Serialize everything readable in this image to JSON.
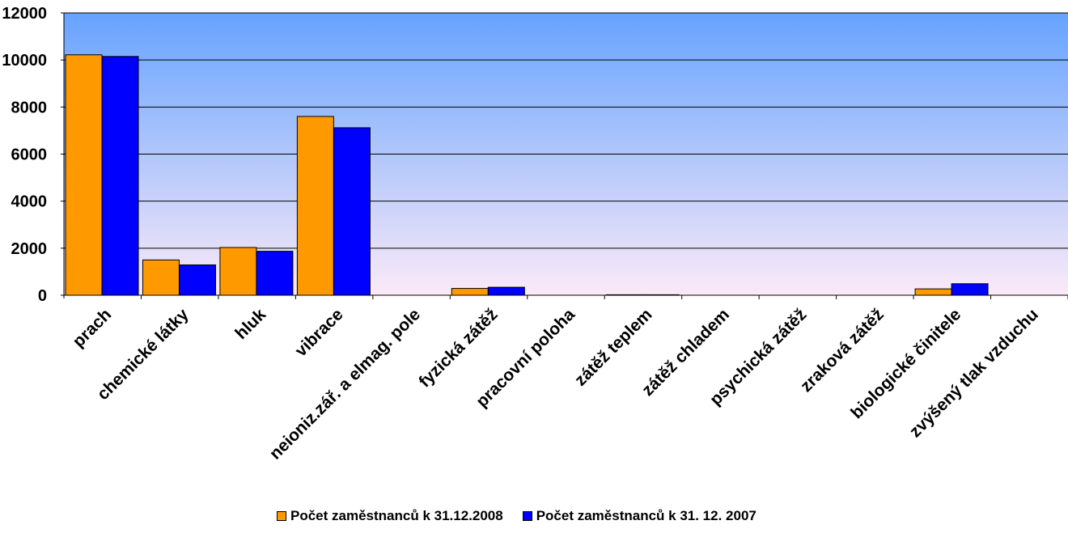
{
  "chart_data": {
    "type": "bar",
    "categories": [
      "prach",
      "chemické látky",
      "hluk",
      "vibrace",
      "neioniz.zář. a elmag. pole",
      "fyzická zátěž",
      "pracovní poloha",
      "zátěž teplem",
      "zátěž chladem",
      "psychická zátěž",
      "zraková zátěž",
      "biologické činitele",
      "zvýšený tlak vzduchu"
    ],
    "series": [
      {
        "name": "Počet zaměstnanců k 31.12.2008",
        "color": "#FF9900",
        "values": [
          10220,
          1500,
          2030,
          7600,
          0,
          290,
          0,
          20,
          0,
          0,
          0,
          270,
          0
        ]
      },
      {
        "name": "Počet zaměstnanců k 31. 12. 2007",
        "color": "#0000FF",
        "values": [
          10150,
          1290,
          1870,
          7120,
          0,
          340,
          0,
          20,
          0,
          0,
          0,
          490,
          0
        ]
      }
    ],
    "yticks": [
      "0",
      "2000",
      "4000",
      "6000",
      "8000",
      "10000",
      "12000"
    ],
    "ylim": [
      0,
      12000
    ],
    "grid": true,
    "legend_position": "bottom",
    "background": {
      "gradient_top": "#66A3FF",
      "gradient_bottom": "#FBEAF7"
    }
  }
}
